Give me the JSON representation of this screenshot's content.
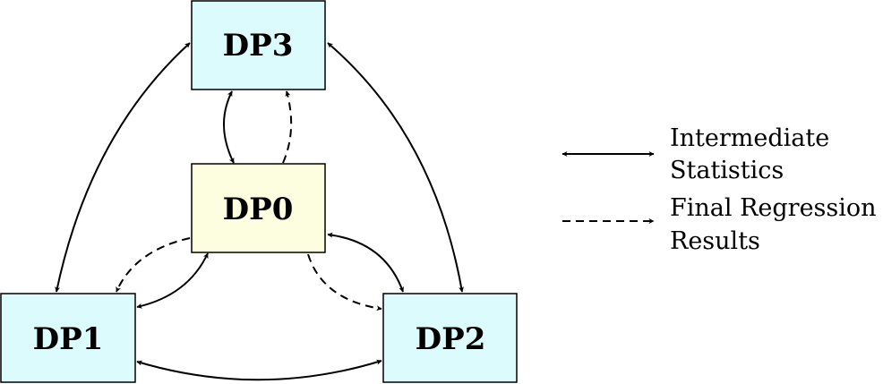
{
  "diagram": {
    "nodes": [
      {
        "id": "dp3",
        "label": "DP3",
        "fill": "#dcfbfc"
      },
      {
        "id": "dp0",
        "label": "DP0",
        "fill": "#fdfde0"
      },
      {
        "id": "dp1",
        "label": "DP1",
        "fill": "#dcfbfc"
      },
      {
        "id": "dp2",
        "label": "DP2",
        "fill": "#dcfbfc"
      }
    ],
    "edges": [
      {
        "from": "dp3",
        "to": "dp1",
        "style": "solid",
        "meaning": "Intermediate Statistics"
      },
      {
        "from": "dp3",
        "to": "dp2",
        "style": "solid",
        "meaning": "Intermediate Statistics"
      },
      {
        "from": "dp1",
        "to": "dp2",
        "style": "solid",
        "meaning": "Intermediate Statistics"
      },
      {
        "from": "dp0",
        "to": "dp3",
        "style": "solid",
        "meaning": "Intermediate Statistics"
      },
      {
        "from": "dp0",
        "to": "dp1",
        "style": "solid",
        "meaning": "Intermediate Statistics"
      },
      {
        "from": "dp0",
        "to": "dp2",
        "style": "solid",
        "meaning": "Intermediate Statistics"
      },
      {
        "from": "dp0",
        "to": "dp3",
        "style": "dashed",
        "meaning": "Final Regression Results"
      },
      {
        "from": "dp0",
        "to": "dp1",
        "style": "dashed",
        "meaning": "Final Regression Results"
      },
      {
        "from": "dp0",
        "to": "dp2",
        "style": "dashed",
        "meaning": "Final Regression Results"
      }
    ]
  },
  "legend": {
    "items": [
      {
        "style": "solid",
        "line1": "Intermediate",
        "line2": "Statistics"
      },
      {
        "style": "dashed",
        "line1": "Final Regression",
        "line2": "Results"
      }
    ]
  }
}
